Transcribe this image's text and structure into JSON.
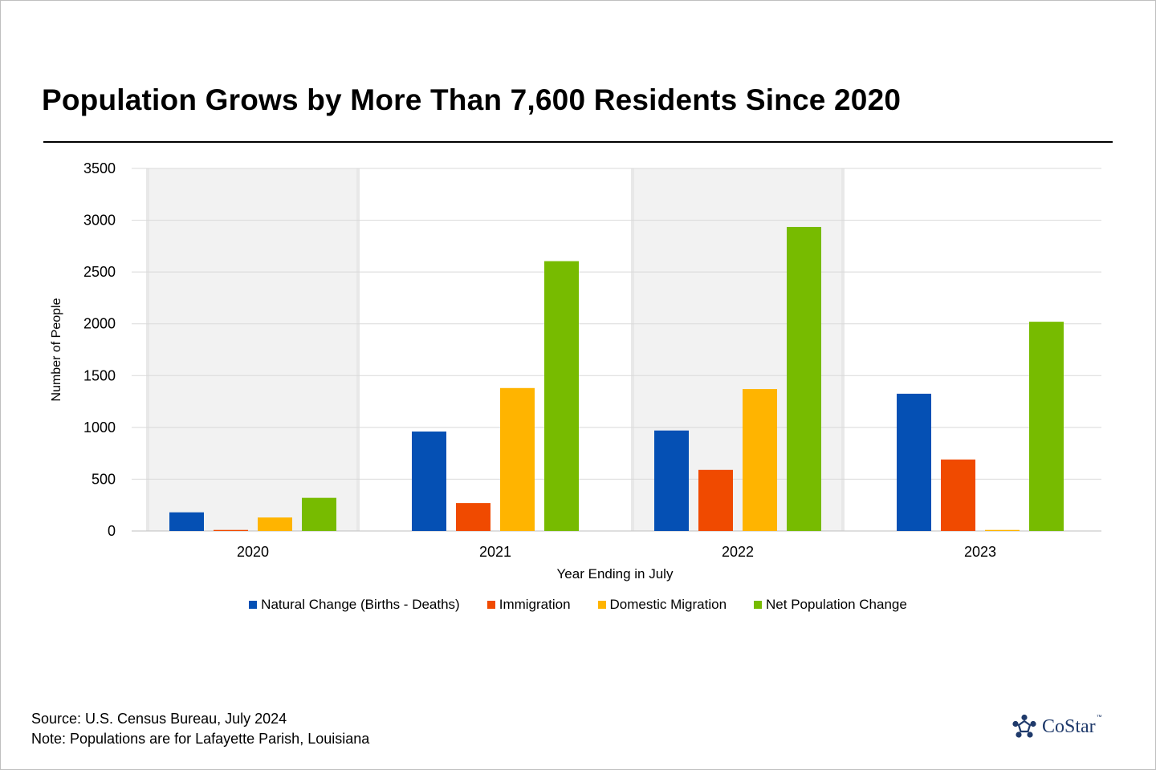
{
  "title": "Population Grows by More Than 7,600 Residents Since 2020",
  "footer": {
    "source": "Source: U.S. Census Bureau, July 2024",
    "note": "Note: Populations are for Lafayette Parish, Louisiana"
  },
  "logo": {
    "text": "CoStar",
    "tm": "™",
    "icon": "costar-star-logo-icon"
  },
  "colors": {
    "natural": "#0550b4",
    "immigration": "#f04a00",
    "domestic": "#ffb400",
    "net": "#77bb00",
    "band": "#f2f2f2",
    "grid": "#d9d9d9"
  },
  "chart_data": {
    "type": "bar",
    "title": "Population Grows by More Than 7,600 Residents Since 2020",
    "xlabel": "Year Ending in July",
    "ylabel": "Number of People",
    "ylim": [
      0,
      3500
    ],
    "yticks": [
      0,
      500,
      1000,
      1500,
      2000,
      2500,
      3000,
      3500
    ],
    "grid": true,
    "legend_position": "bottom",
    "categories": [
      "2020",
      "2021",
      "2022",
      "2023"
    ],
    "shaded_categories": [
      "2020",
      "2022"
    ],
    "series": [
      {
        "name": "Natural Change (Births - Deaths)",
        "color": "#0550b4",
        "values": [
          180,
          960,
          970,
          1325
        ]
      },
      {
        "name": "Immigration",
        "color": "#f04a00",
        "values": [
          10,
          270,
          590,
          690
        ]
      },
      {
        "name": "Domestic Migration",
        "color": "#ffb400",
        "values": [
          130,
          1380,
          1370,
          10
        ]
      },
      {
        "name": "Net Population Change",
        "color": "#77bb00",
        "values": [
          320,
          2605,
          2935,
          2020
        ]
      }
    ]
  }
}
